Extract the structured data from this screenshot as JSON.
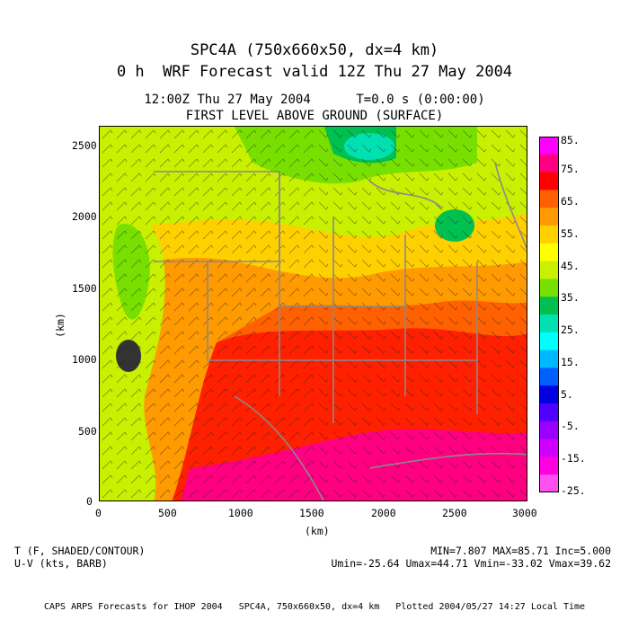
{
  "title": {
    "line1": "SPC4A (750x660x50, dx=4 km)",
    "line2": "0 h  WRF Forecast valid 12Z Thu 27 May 2004"
  },
  "subtitle": {
    "line1": "12:00Z Thu 27 May 2004      T=0.0 s (0:00:00)",
    "line2": "FIRST LEVEL ABOVE GROUND (SURFACE)"
  },
  "axes": {
    "xlabel": "(km)",
    "ylabel": "(km)",
    "x_ticks": [
      "0",
      "500",
      "1000",
      "1500",
      "2000",
      "2500",
      "3000"
    ],
    "y_ticks": [
      "0",
      "500",
      "1000",
      "1500",
      "2000",
      "2500"
    ],
    "xlim": [
      0,
      3000
    ],
    "ylim": [
      0,
      2640
    ]
  },
  "colorbar": {
    "labels": [
      "85.",
      "75.",
      "65.",
      "55.",
      "45.",
      "35.",
      "25.",
      "15.",
      "5.",
      "-5.",
      "-15.",
      "-25."
    ],
    "colors": [
      "#ff00ff",
      "#ff0080",
      "#ff0000",
      "#ff6000",
      "#ff9a00",
      "#ffd000",
      "#ffff00",
      "#c8f000",
      "#78e000",
      "#00c050",
      "#00e0b0",
      "#00ffff",
      "#00b8ff",
      "#0060ff",
      "#0000e0",
      "#5000ff",
      "#9a00ff",
      "#d000ff",
      "#ff00e0",
      "#ff50f0"
    ]
  },
  "legend": {
    "left_line1": "T (F, SHADED/CONTOUR)",
    "left_line2": "U-V (kts, BARB)",
    "right_line1": "MIN=7.807 MAX=85.71 Inc=5.000",
    "right_line2": "Umin=-25.64 Umax=44.71 Vmin=-33.02 Vmax=39.62"
  },
  "footer": "CAPS ARPS Forecasts for IHOP 2004   SPC4A, 750x660x50, dx=4 km   Plotted 2004/05/27 14:27 Local Time",
  "chart_data": {
    "type": "heatmap",
    "variable": "T (F, SHADED/CONTOUR)",
    "wind": "U-V (kts, BARB)",
    "min": 7.807,
    "max": 85.71,
    "increment": 5.0,
    "u_range": [
      -25.64,
      44.71
    ],
    "v_range": [
      -33.02,
      39.62
    ],
    "colorbar_range": [
      -25,
      85
    ]
  }
}
